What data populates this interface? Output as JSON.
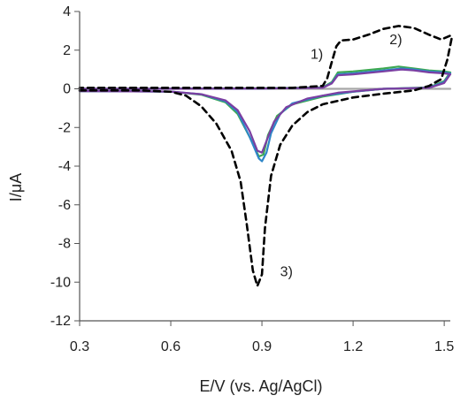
{
  "chart_data": {
    "type": "line",
    "title": "",
    "xlabel": "E/V (vs. Ag/AgCl)",
    "ylabel": "I/μA",
    "xlim": [
      0.3,
      1.55
    ],
    "ylim": [
      -12,
      4
    ],
    "xticks": [
      "0.3",
      "0.6",
      "0.9",
      "1.2",
      "1.5"
    ],
    "yticks": [
      "4",
      "2",
      "0",
      "-2",
      "-4",
      "-6",
      "-8",
      "-10",
      "-12"
    ],
    "grid": false,
    "annotations": [
      {
        "text": "1)",
        "x": 1.06,
        "y": 1.55
      },
      {
        "text": "2)",
        "x": 1.32,
        "y": 2.3
      },
      {
        "text": "3)",
        "x": 0.96,
        "y": -9.7
      }
    ],
    "series": [
      {
        "style": "dashed",
        "color": "#000000",
        "points": [
          [
            0.3,
            -0.08
          ],
          [
            0.5,
            -0.08
          ],
          [
            0.6,
            -0.15
          ],
          [
            0.65,
            -0.35
          ],
          [
            0.7,
            -0.9
          ],
          [
            0.75,
            -1.8
          ],
          [
            0.8,
            -3.2
          ],
          [
            0.83,
            -4.8
          ],
          [
            0.85,
            -7.0
          ],
          [
            0.87,
            -9.4
          ],
          [
            0.885,
            -10.2
          ],
          [
            0.9,
            -9.6
          ],
          [
            0.91,
            -7.2
          ],
          [
            0.93,
            -4.5
          ],
          [
            0.96,
            -2.9
          ],
          [
            1.0,
            -1.9
          ],
          [
            1.05,
            -1.2
          ],
          [
            1.1,
            -0.8
          ],
          [
            1.2,
            -0.45
          ],
          [
            1.3,
            -0.25
          ],
          [
            1.4,
            -0.08
          ],
          [
            1.45,
            0.15
          ],
          [
            1.49,
            0.5
          ],
          [
            1.51,
            1.5
          ],
          [
            1.525,
            2.65
          ],
          [
            1.52,
            2.75
          ],
          [
            1.49,
            2.55
          ],
          [
            1.45,
            2.8
          ],
          [
            1.4,
            3.15
          ],
          [
            1.35,
            3.25
          ],
          [
            1.3,
            3.1
          ],
          [
            1.25,
            2.8
          ],
          [
            1.2,
            2.55
          ],
          [
            1.16,
            2.5
          ],
          [
            1.145,
            2.2
          ],
          [
            1.13,
            1.4
          ],
          [
            1.115,
            0.55
          ],
          [
            1.1,
            0.15
          ],
          [
            1.0,
            0.05
          ],
          [
            0.8,
            0.05
          ],
          [
            0.5,
            0.05
          ],
          [
            0.3,
            0.05
          ]
        ]
      },
      {
        "style": "solid",
        "color": "#3da852",
        "points": [
          [
            0.3,
            -0.12
          ],
          [
            0.6,
            -0.14
          ],
          [
            0.7,
            -0.3
          ],
          [
            0.78,
            -0.7
          ],
          [
            0.82,
            -1.3
          ],
          [
            0.86,
            -2.5
          ],
          [
            0.89,
            -3.5
          ],
          [
            0.905,
            -3.4
          ],
          [
            0.92,
            -2.4
          ],
          [
            0.95,
            -1.4
          ],
          [
            1.0,
            -0.8
          ],
          [
            1.1,
            -0.4
          ],
          [
            1.2,
            -0.15
          ],
          [
            1.3,
            0.0
          ],
          [
            1.45,
            0.08
          ],
          [
            1.5,
            0.4
          ],
          [
            1.52,
            0.85
          ],
          [
            1.5,
            0.9
          ],
          [
            1.45,
            0.95
          ],
          [
            1.4,
            1.05
          ],
          [
            1.35,
            1.15
          ],
          [
            1.3,
            1.05
          ],
          [
            1.2,
            0.9
          ],
          [
            1.15,
            0.85
          ],
          [
            1.13,
            0.35
          ],
          [
            1.1,
            0.08
          ],
          [
            0.9,
            0.03
          ],
          [
            0.5,
            0.0
          ],
          [
            0.3,
            0.0
          ]
        ]
      },
      {
        "style": "solid",
        "color": "#2e86c8",
        "points": [
          [
            0.3,
            -0.12
          ],
          [
            0.6,
            -0.14
          ],
          [
            0.7,
            -0.28
          ],
          [
            0.78,
            -0.65
          ],
          [
            0.82,
            -1.2
          ],
          [
            0.86,
            -2.5
          ],
          [
            0.89,
            -3.6
          ],
          [
            0.9,
            -3.75
          ],
          [
            0.915,
            -3.3
          ],
          [
            0.93,
            -2.3
          ],
          [
            0.96,
            -1.3
          ],
          [
            1.0,
            -0.75
          ],
          [
            1.1,
            -0.35
          ],
          [
            1.2,
            -0.15
          ],
          [
            1.3,
            0.0
          ],
          [
            1.45,
            0.06
          ],
          [
            1.5,
            0.35
          ],
          [
            1.52,
            0.8
          ],
          [
            1.5,
            0.85
          ],
          [
            1.45,
            0.9
          ],
          [
            1.4,
            1.0
          ],
          [
            1.36,
            1.05
          ],
          [
            1.3,
            0.95
          ],
          [
            1.2,
            0.8
          ],
          [
            1.15,
            0.75
          ],
          [
            1.13,
            0.3
          ],
          [
            1.1,
            0.06
          ],
          [
            0.9,
            0.02
          ],
          [
            0.5,
            0.0
          ],
          [
            0.3,
            0.0
          ]
        ]
      },
      {
        "style": "solid",
        "color": "#7b3fa2",
        "points": [
          [
            0.3,
            -0.12
          ],
          [
            0.6,
            -0.14
          ],
          [
            0.7,
            -0.28
          ],
          [
            0.78,
            -0.6
          ],
          [
            0.82,
            -1.1
          ],
          [
            0.86,
            -2.2
          ],
          [
            0.885,
            -3.2
          ],
          [
            0.9,
            -3.3
          ],
          [
            0.915,
            -2.7
          ],
          [
            0.94,
            -1.7
          ],
          [
            0.98,
            -0.95
          ],
          [
            1.05,
            -0.5
          ],
          [
            1.15,
            -0.2
          ],
          [
            1.3,
            0.0
          ],
          [
            1.45,
            0.05
          ],
          [
            1.5,
            0.3
          ],
          [
            1.52,
            0.75
          ],
          [
            1.5,
            0.8
          ],
          [
            1.45,
            0.85
          ],
          [
            1.4,
            0.95
          ],
          [
            1.36,
            1.0
          ],
          [
            1.3,
            0.9
          ],
          [
            1.2,
            0.75
          ],
          [
            1.15,
            0.7
          ],
          [
            1.13,
            0.28
          ],
          [
            1.1,
            0.05
          ],
          [
            0.9,
            0.02
          ],
          [
            0.5,
            0.0
          ],
          [
            0.3,
            0.0
          ]
        ]
      },
      {
        "style": "solid",
        "color": "#a6a6a6",
        "points": [
          [
            0.3,
            0.0
          ],
          [
            1.52,
            0.0
          ]
        ]
      }
    ]
  }
}
